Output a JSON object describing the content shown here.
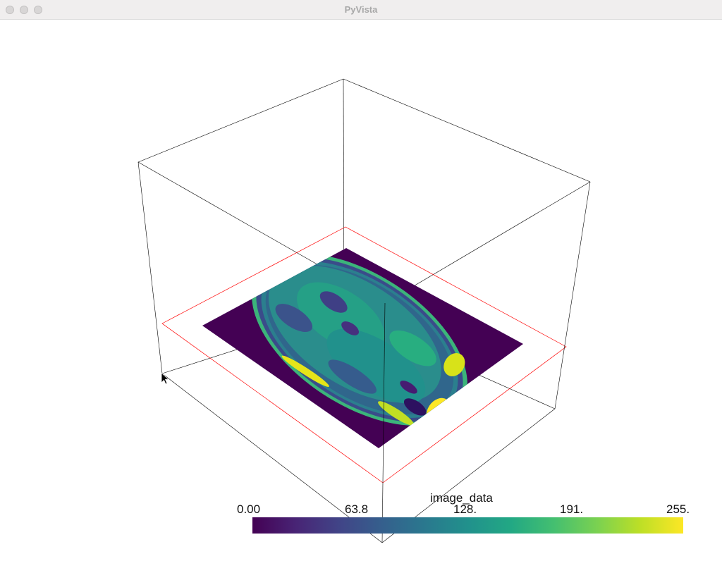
{
  "window": {
    "title": "PyVista"
  },
  "scene": {
    "bounds_outline_color": "#000000",
    "slice_outline_color": "#ff0000",
    "background": "#ffffff"
  },
  "scalar_bar": {
    "title": "image_data",
    "labels": [
      "0.00",
      "63.8",
      "128.",
      "191.",
      "255."
    ],
    "colormap": "viridis",
    "range": [
      0,
      255
    ]
  },
  "icons": {
    "pointer": "mouse-pointer-icon"
  }
}
